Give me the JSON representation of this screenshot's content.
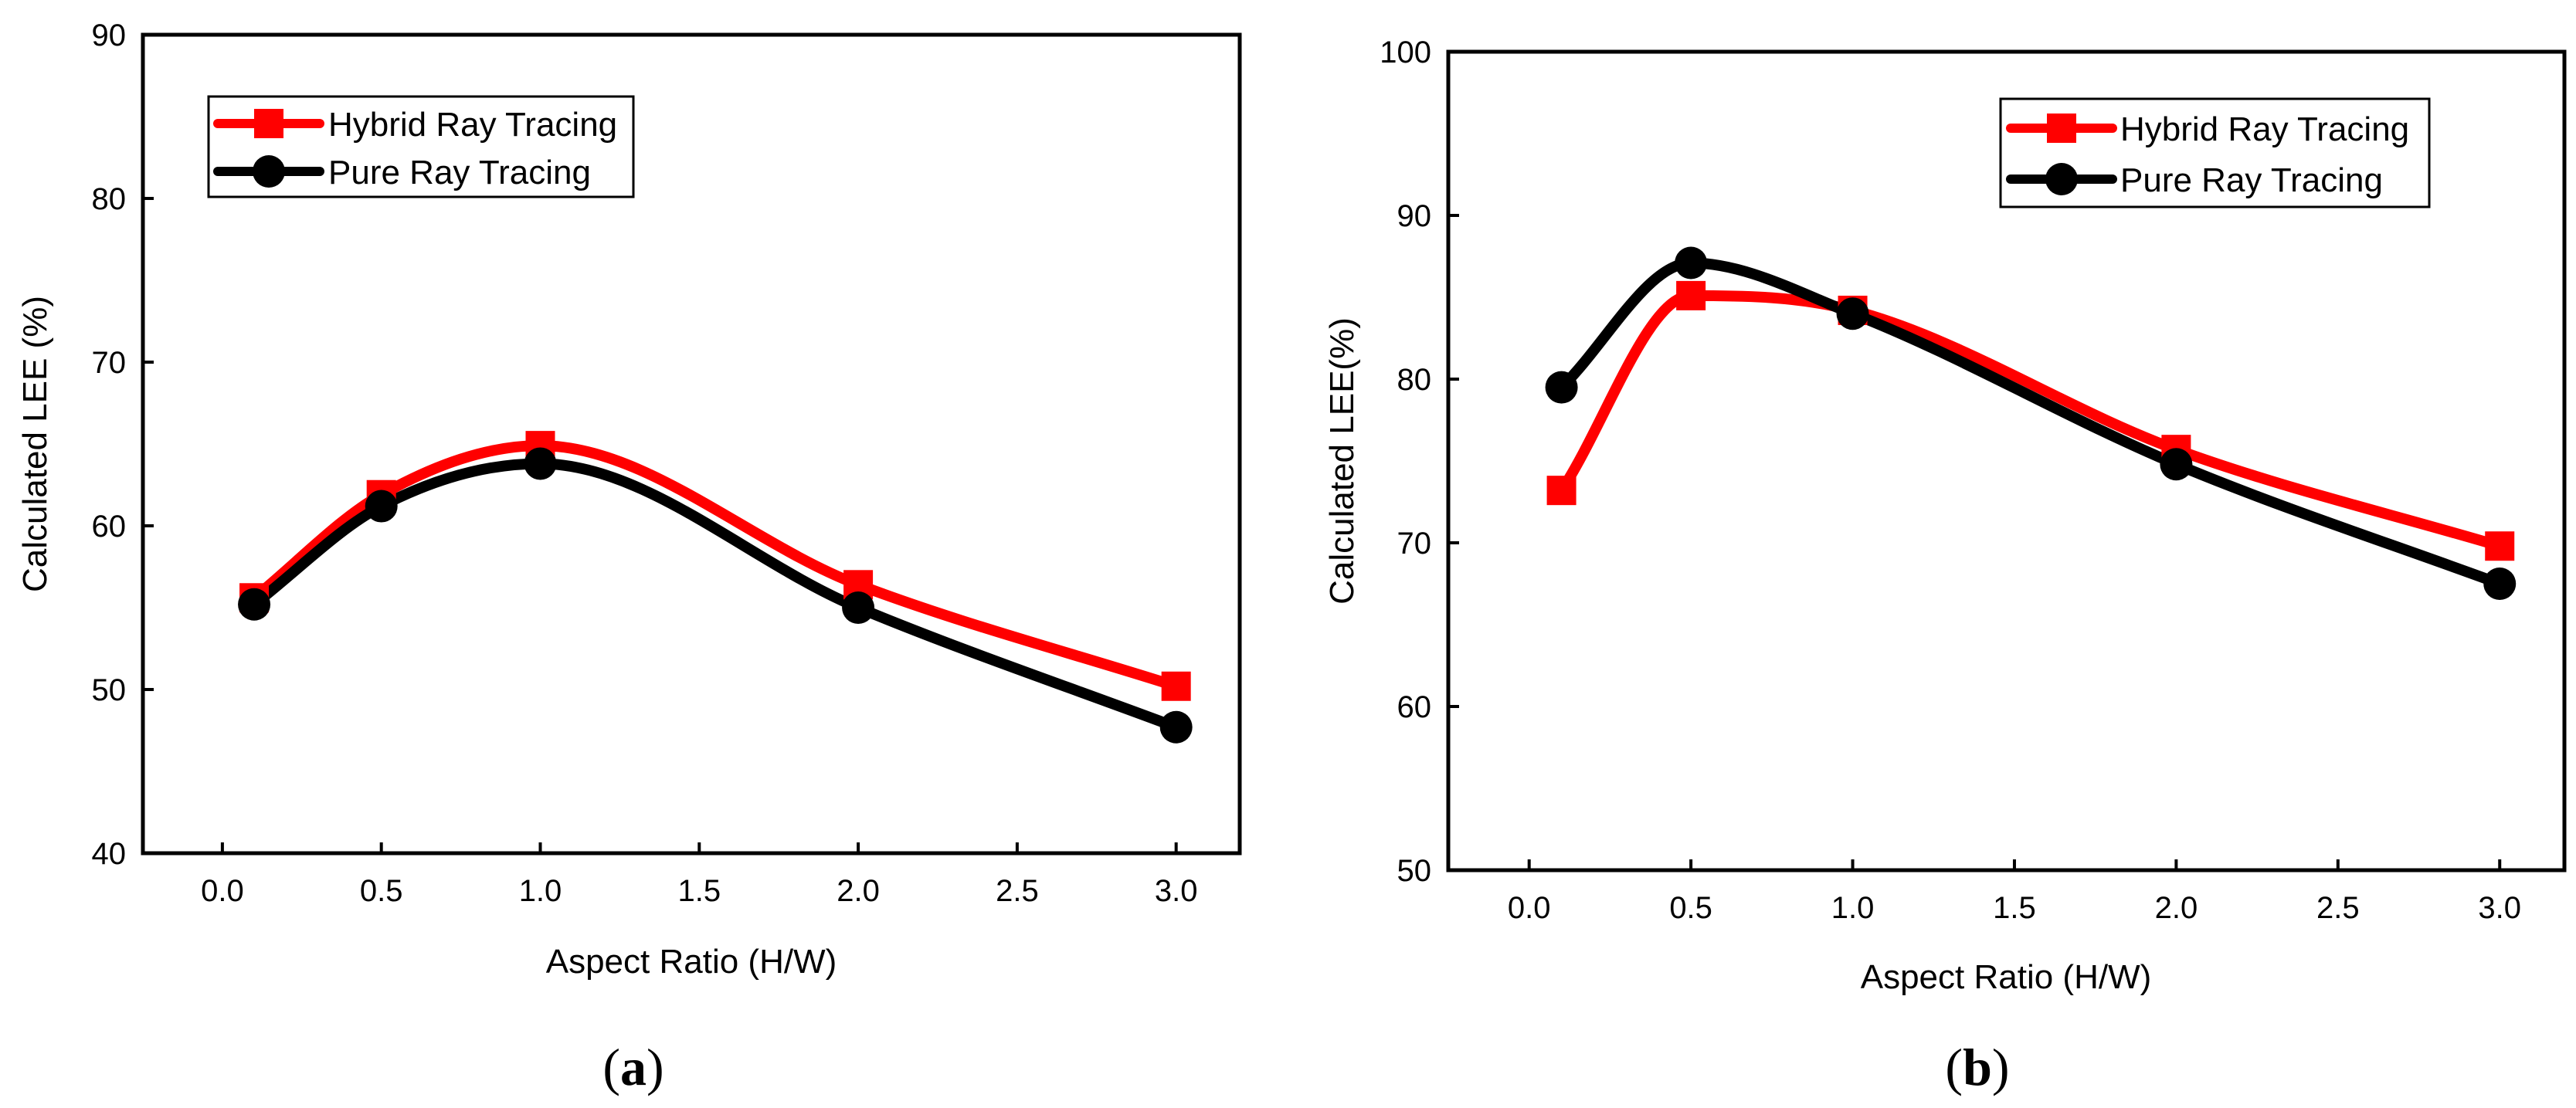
{
  "chart_data": [
    {
      "type": "line",
      "panel": "a",
      "caption": {
        "open": "(",
        "letter": "a",
        "close": ")"
      },
      "xlabel": "Aspect Ratio (H/W)",
      "ylabel": "Calculated LEE (%)",
      "xlim": [
        -0.25,
        3.2
      ],
      "ylim": [
        40,
        90
      ],
      "xticks": [
        0.0,
        0.5,
        1.0,
        1.5,
        2.0,
        2.5,
        3.0
      ],
      "xtick_labels": [
        "0.0",
        "0.5",
        "1.0",
        "1.5",
        "2.0",
        "2.5",
        "3.0"
      ],
      "yticks": [
        40,
        50,
        60,
        70,
        80,
        90
      ],
      "ytick_labels": [
        "40",
        "50",
        "60",
        "70",
        "80",
        "90"
      ],
      "legend_position": "top-left",
      "series": [
        {
          "name": "Hybrid Ray Tracing",
          "color": "#ff0000",
          "marker": "square",
          "x": [
            0.1,
            0.5,
            1.0,
            2.0,
            3.0
          ],
          "values": [
            55.6,
            61.9,
            64.9,
            56.4,
            50.2
          ]
        },
        {
          "name": "Pure Ray Tracing",
          "color": "#000000",
          "marker": "circle",
          "x": [
            0.1,
            0.5,
            1.0,
            2.0,
            3.0
          ],
          "values": [
            55.2,
            61.2,
            63.8,
            55.0,
            47.7
          ]
        }
      ]
    },
    {
      "type": "line",
      "panel": "b",
      "caption": {
        "open": "(",
        "letter": "b",
        "close": ")"
      },
      "xlabel": "Aspect Ratio (H/W)",
      "ylabel": "Calculated LEE(%)",
      "xlim": [
        -0.25,
        3.2
      ],
      "ylim": [
        50,
        100
      ],
      "xticks": [
        0.0,
        0.5,
        1.0,
        1.5,
        2.0,
        2.5,
        3.0
      ],
      "xtick_labels": [
        "0.0",
        "0.5",
        "1.0",
        "1.5",
        "2.0",
        "2.5",
        "3.0"
      ],
      "yticks": [
        50,
        60,
        70,
        80,
        90,
        100
      ],
      "ytick_labels": [
        "50",
        "60",
        "70",
        "80",
        "90",
        "100"
      ],
      "legend_position": "top-right",
      "series": [
        {
          "name": "Hybrid Ray Tracing",
          "color": "#ff0000",
          "marker": "square",
          "x": [
            0.1,
            0.5,
            1.0,
            2.0,
            3.0
          ],
          "values": [
            73.2,
            85.1,
            84.2,
            75.7,
            69.8
          ]
        },
        {
          "name": "Pure Ray Tracing",
          "color": "#000000",
          "marker": "circle",
          "x": [
            0.1,
            0.5,
            1.0,
            2.0,
            3.0
          ],
          "values": [
            79.5,
            87.1,
            84.0,
            74.8,
            67.5
          ]
        }
      ]
    }
  ]
}
